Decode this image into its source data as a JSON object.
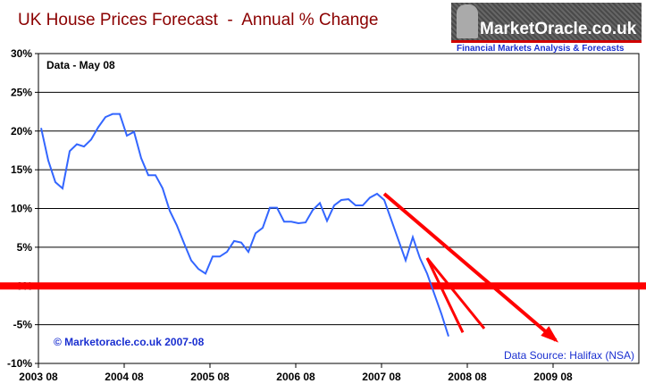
{
  "chart_data": {
    "type": "line",
    "title": "UK House Prices Forecast  -  Annual % Change",
    "annotation_data": "Data - May 08",
    "annotation_copyright": "© Marketoracle.co.uk 2007-08",
    "source": "Data Source: Halifax (NSA)",
    "ylim": [
      -10,
      30
    ],
    "yticks": [
      "30%",
      "25%",
      "20%",
      "15%",
      "10%",
      "5%",
      "0%",
      "-5%",
      "-10%"
    ],
    "ytick_values": [
      30,
      25,
      20,
      15,
      10,
      5,
      0,
      -5,
      -10
    ],
    "xticks": [
      "2003 08",
      "2004 08",
      "2005 08",
      "2006 08",
      "2007 08",
      "2008 08",
      "2009 08"
    ],
    "xlim": [
      "2003-08",
      "2010-08"
    ],
    "grid": "horizontal",
    "line_color": "#3366ff",
    "x": [
      "2003-08",
      "2003-09",
      "2003-10",
      "2003-11",
      "2003-12",
      "2004-01",
      "2004-02",
      "2004-03",
      "2004-04",
      "2004-05",
      "2004-06",
      "2004-07",
      "2004-08",
      "2004-09",
      "2004-10",
      "2004-11",
      "2004-12",
      "2005-01",
      "2005-02",
      "2005-03",
      "2005-04",
      "2005-05",
      "2005-06",
      "2005-07",
      "2005-08",
      "2005-09",
      "2005-10",
      "2005-11",
      "2005-12",
      "2006-01",
      "2006-02",
      "2006-03",
      "2006-04",
      "2006-05",
      "2006-06",
      "2006-07",
      "2006-08",
      "2006-09",
      "2006-10",
      "2006-11",
      "2006-12",
      "2007-01",
      "2007-02",
      "2007-03",
      "2007-04",
      "2007-05",
      "2007-06",
      "2007-07",
      "2007-08",
      "2007-09",
      "2007-10",
      "2007-11",
      "2007-12",
      "2008-01",
      "2008-02",
      "2008-03",
      "2008-04",
      "2008-05"
    ],
    "values": [
      20.4,
      16.2,
      13.4,
      12.6,
      17.4,
      18.3,
      18.0,
      18.9,
      20.5,
      21.8,
      22.2,
      22.2,
      19.4,
      19.9,
      16.5,
      14.3,
      14.3,
      12.6,
      9.7,
      7.8,
      5.5,
      3.3,
      2.2,
      1.6,
      3.8,
      3.8,
      4.4,
      5.8,
      5.6,
      4.4,
      6.8,
      7.5,
      10.1,
      10.1,
      8.3,
      8.3,
      8.1,
      8.2,
      9.8,
      10.7,
      8.4,
      10.4,
      11.1,
      11.2,
      10.4,
      10.4,
      11.4,
      11.9,
      11.1,
      8.5,
      5.9,
      3.3,
      6.3,
      3.6,
      1.6,
      -1.0,
      -3.6,
      -6.5
    ],
    "forecast_arrows": [
      {
        "from": [
          "2007-08",
          11.9
        ],
        "to": [
          "2009-08",
          -7.0
        ],
        "color": "#ff0000",
        "arrowhead": true
      },
      {
        "from": [
          "2008-02",
          3.6
        ],
        "to": [
          "2008-07",
          -6.0
        ],
        "color": "#ff0000",
        "arrowhead": false
      },
      {
        "from": [
          "2008-02",
          3.6
        ],
        "to": [
          "2008-10",
          -5.5
        ],
        "color": "#ff0000",
        "arrowhead": false
      }
    ],
    "zero_line_color": "#ff0000"
  },
  "logo": {
    "name": "MarketOracle.co.uk",
    "tagline": "Financial Markets Analysis & Forecasts"
  }
}
